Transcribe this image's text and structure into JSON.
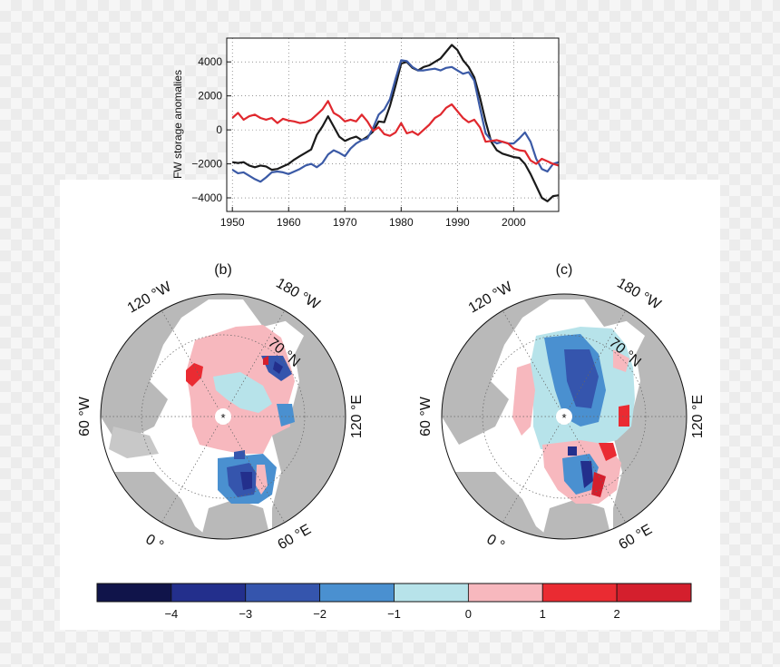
{
  "chart_data": [
    {
      "type": "line",
      "title": "",
      "xlabel": "",
      "ylabel": "FW storage anomalies",
      "xlim": [
        1949,
        2008
      ],
      "ylim": [
        -4800,
        5400
      ],
      "xticks": [
        1950,
        1960,
        1970,
        1980,
        1990,
        2000
      ],
      "yticks": [
        -4000,
        -2000,
        0,
        2000,
        4000
      ],
      "grid": true,
      "legend": "none",
      "series": [
        {
          "color": "#1a1a1a",
          "points": [
            [
              1950,
              -1900
            ],
            [
              1951,
              -1950
            ],
            [
              1952,
              -1900
            ],
            [
              1953,
              -2100
            ],
            [
              1954,
              -2200
            ],
            [
              1955,
              -2100
            ],
            [
              1956,
              -2150
            ],
            [
              1957,
              -2350
            ],
            [
              1958,
              -2300
            ],
            [
              1959,
              -2150
            ],
            [
              1960,
              -2000
            ],
            [
              1961,
              -1750
            ],
            [
              1962,
              -1550
            ],
            [
              1963,
              -1350
            ],
            [
              1964,
              -1150
            ],
            [
              1965,
              -300
            ],
            [
              1966,
              200
            ],
            [
              1967,
              800
            ],
            [
              1968,
              200
            ],
            [
              1969,
              -400
            ],
            [
              1970,
              -650
            ],
            [
              1971,
              -500
            ],
            [
              1972,
              -400
            ],
            [
              1973,
              -600
            ],
            [
              1974,
              -400
            ],
            [
              1975,
              -100
            ],
            [
              1976,
              500
            ],
            [
              1977,
              450
            ],
            [
              1978,
              1400
            ],
            [
              1979,
              2600
            ],
            [
              1980,
              3900
            ],
            [
              1981,
              4000
            ],
            [
              1982,
              3650
            ],
            [
              1983,
              3500
            ],
            [
              1984,
              3700
            ],
            [
              1985,
              3800
            ],
            [
              1986,
              4000
            ],
            [
              1987,
              4200
            ],
            [
              1988,
              4600
            ],
            [
              1989,
              5000
            ],
            [
              1990,
              4700
            ],
            [
              1991,
              4100
            ],
            [
              1992,
              3700
            ],
            [
              1993,
              3100
            ],
            [
              1994,
              1900
            ],
            [
              1995,
              500
            ],
            [
              1996,
              -700
            ],
            [
              1997,
              -1200
            ],
            [
              1998,
              -1400
            ],
            [
              1999,
              -1500
            ],
            [
              2000,
              -1600
            ],
            [
              2001,
              -1650
            ],
            [
              2002,
              -2000
            ],
            [
              2003,
              -2600
            ],
            [
              2004,
              -3300
            ],
            [
              2005,
              -4000
            ],
            [
              2006,
              -4200
            ],
            [
              2007,
              -3900
            ],
            [
              2008,
              -3850
            ]
          ]
        },
        {
          "color": "#3b5aa6",
          "points": [
            [
              1950,
              -2350
            ],
            [
              1951,
              -2550
            ],
            [
              1952,
              -2500
            ],
            [
              1953,
              -2700
            ],
            [
              1954,
              -2900
            ],
            [
              1955,
              -3050
            ],
            [
              1956,
              -2800
            ],
            [
              1957,
              -2500
            ],
            [
              1958,
              -2450
            ],
            [
              1959,
              -2500
            ],
            [
              1960,
              -2600
            ],
            [
              1961,
              -2450
            ],
            [
              1962,
              -2300
            ],
            [
              1963,
              -2100
            ],
            [
              1964,
              -2000
            ],
            [
              1965,
              -2200
            ],
            [
              1966,
              -1950
            ],
            [
              1967,
              -1450
            ],
            [
              1968,
              -1200
            ],
            [
              1969,
              -1350
            ],
            [
              1970,
              -1550
            ],
            [
              1971,
              -1100
            ],
            [
              1972,
              -800
            ],
            [
              1973,
              -600
            ],
            [
              1974,
              -500
            ],
            [
              1975,
              100
            ],
            [
              1976,
              900
            ],
            [
              1977,
              1200
            ],
            [
              1978,
              1800
            ],
            [
              1979,
              3000
            ],
            [
              1980,
              4100
            ],
            [
              1981,
              4050
            ],
            [
              1982,
              3700
            ],
            [
              1983,
              3500
            ],
            [
              1984,
              3500
            ],
            [
              1985,
              3550
            ],
            [
              1986,
              3600
            ],
            [
              1987,
              3500
            ],
            [
              1988,
              3650
            ],
            [
              1989,
              3700
            ],
            [
              1990,
              3500
            ],
            [
              1991,
              3300
            ],
            [
              1992,
              3400
            ],
            [
              1993,
              2900
            ],
            [
              1994,
              1300
            ],
            [
              1995,
              -200
            ],
            [
              1996,
              -600
            ],
            [
              1997,
              -800
            ],
            [
              1998,
              -700
            ],
            [
              1999,
              -800
            ],
            [
              2000,
              -800
            ],
            [
              2001,
              -500
            ],
            [
              2002,
              -150
            ],
            [
              2003,
              -700
            ],
            [
              2004,
              -1700
            ],
            [
              2005,
              -2300
            ],
            [
              2006,
              -2450
            ],
            [
              2007,
              -2000
            ],
            [
              2008,
              -1900
            ]
          ]
        },
        {
          "color": "#e0282e",
          "points": [
            [
              1950,
              700
            ],
            [
              1951,
              1000
            ],
            [
              1952,
              600
            ],
            [
              1953,
              800
            ],
            [
              1954,
              900
            ],
            [
              1955,
              700
            ],
            [
              1956,
              600
            ],
            [
              1957,
              700
            ],
            [
              1958,
              400
            ],
            [
              1959,
              650
            ],
            [
              1960,
              550
            ],
            [
              1961,
              500
            ],
            [
              1962,
              400
            ],
            [
              1963,
              450
            ],
            [
              1964,
              600
            ],
            [
              1965,
              900
            ],
            [
              1966,
              1200
            ],
            [
              1967,
              1700
            ],
            [
              1968,
              1000
            ],
            [
              1969,
              800
            ],
            [
              1970,
              500
            ],
            [
              1971,
              600
            ],
            [
              1972,
              500
            ],
            [
              1973,
              900
            ],
            [
              1974,
              500
            ],
            [
              1975,
              -50
            ],
            [
              1976,
              150
            ],
            [
              1977,
              -250
            ],
            [
              1978,
              -350
            ],
            [
              1979,
              -150
            ],
            [
              1980,
              400
            ],
            [
              1981,
              -200
            ],
            [
              1982,
              -100
            ],
            [
              1983,
              -300
            ],
            [
              1984,
              0
            ],
            [
              1985,
              300
            ],
            [
              1986,
              700
            ],
            [
              1987,
              900
            ],
            [
              1988,
              1300
            ],
            [
              1989,
              1500
            ],
            [
              1990,
              1100
            ],
            [
              1991,
              700
            ],
            [
              1992,
              450
            ],
            [
              1993,
              600
            ],
            [
              1994,
              150
            ],
            [
              1995,
              -700
            ],
            [
              1996,
              -650
            ],
            [
              1997,
              -600
            ],
            [
              1998,
              -700
            ],
            [
              1999,
              -800
            ],
            [
              2000,
              -1100
            ],
            [
              2001,
              -1200
            ],
            [
              2002,
              -1250
            ],
            [
              2003,
              -1800
            ],
            [
              2004,
              -2000
            ],
            [
              2005,
              -1700
            ],
            [
              2006,
              -1850
            ],
            [
              2007,
              -2000
            ],
            [
              2008,
              -2100
            ]
          ]
        }
      ]
    },
    {
      "type": "heatmap",
      "panel_label": "(b)",
      "projection": "north-polar-stereographic",
      "lon_labels": [
        "120 °W",
        "180 °W",
        "60 °W",
        "120 °E",
        "0 °",
        "60 °E"
      ],
      "lat_label": "70 °N",
      "pole_marker": "*",
      "land_color": "#b9b9b9",
      "ocean_color": "#ffffff"
    },
    {
      "type": "heatmap",
      "panel_label": "(c)",
      "projection": "north-polar-stereographic",
      "lon_labels": [
        "120 °W",
        "180 °W",
        "60 °W",
        "120 °E",
        "0 °",
        "60 °E"
      ],
      "lat_label": "70 °N",
      "pole_marker": "*",
      "land_color": "#b9b9b9",
      "ocean_color": "#ffffff"
    }
  ],
  "colorbar": {
    "tick_labels": [
      "−4",
      "−3",
      "−2",
      "−1",
      "0",
      "1",
      "2"
    ],
    "colors": [
      "#10144a",
      "#232f8c",
      "#3555ad",
      "#4a90d0",
      "#b7e3ea",
      "#f7b8be",
      "#ea2b32",
      "#d41f2d"
    ]
  }
}
